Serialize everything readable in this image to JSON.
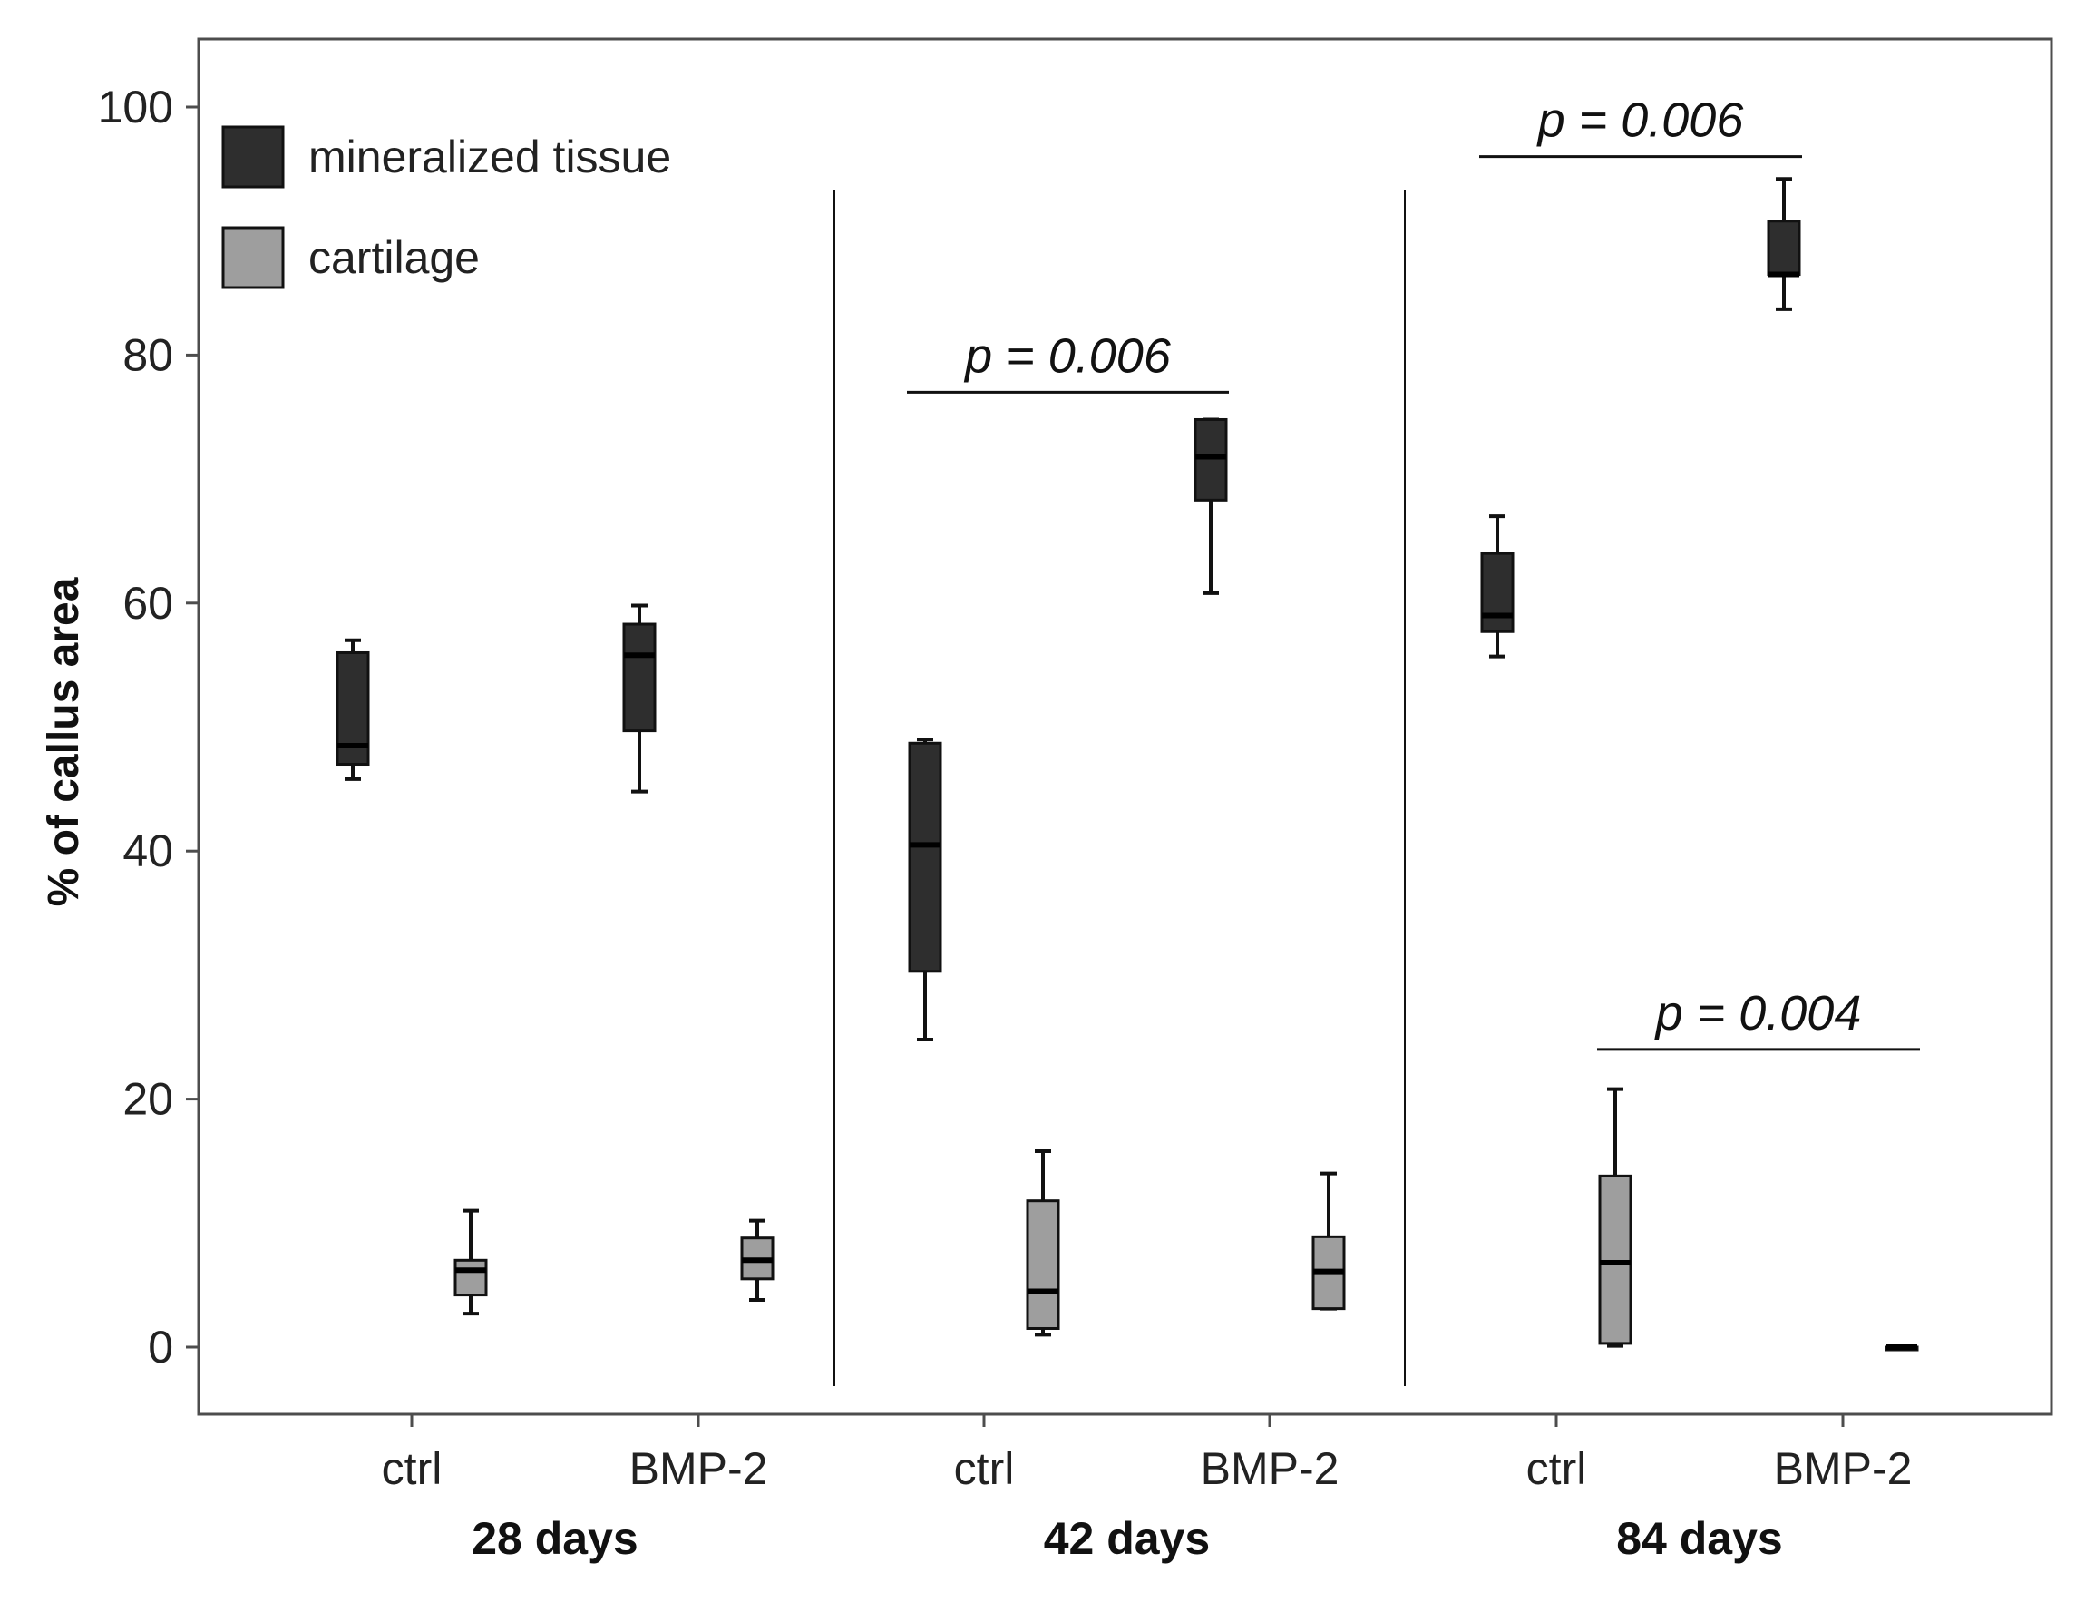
{
  "chart_data": {
    "type": "boxplot",
    "ylabel": "% of callus area",
    "xlabel": "",
    "ylim": [
      0,
      100
    ],
    "yticks": [
      0,
      20,
      40,
      60,
      80,
      100
    ],
    "groups": [
      {
        "label": "28 days",
        "categories": [
          "ctrl",
          "BMP-2"
        ]
      },
      {
        "label": "42 days",
        "categories": [
          "ctrl",
          "BMP-2"
        ]
      },
      {
        "label": "84 days",
        "categories": [
          "ctrl",
          "BMP-2"
        ]
      }
    ],
    "legend": {
      "position": "top-left",
      "entries": [
        {
          "name": "mineralized tissue",
          "color": "#2e2e2e"
        },
        {
          "name": "cartilage",
          "color": "#9e9e9e"
        }
      ]
    },
    "series": [
      {
        "name": "mineralized tissue",
        "color": "#2e2e2e",
        "boxes": [
          {
            "group": "28 days",
            "category": "ctrl",
            "min": 45.8,
            "q1": 47.0,
            "median": 48.5,
            "q3": 56.0,
            "max": 57.0
          },
          {
            "group": "28 days",
            "category": "BMP-2",
            "min": 44.8,
            "q1": 49.7,
            "median": 55.8,
            "q3": 58.3,
            "max": 59.8
          },
          {
            "group": "42 days",
            "category": "ctrl",
            "min": 24.8,
            "q1": 30.3,
            "median": 40.5,
            "q3": 48.7,
            "max": 49.0
          },
          {
            "group": "42 days",
            "category": "BMP-2",
            "min": 60.8,
            "q1": 68.3,
            "median": 71.8,
            "q3": 74.8,
            "max": 74.8
          },
          {
            "group": "84 days",
            "category": "ctrl",
            "min": 55.7,
            "q1": 57.7,
            "median": 59.0,
            "q3": 64.0,
            "max": 67.0
          },
          {
            "group": "84 days",
            "category": "BMP-2",
            "min": 83.7,
            "q1": 86.5,
            "median": 86.5,
            "q3": 90.8,
            "max": 94.2
          }
        ]
      },
      {
        "name": "cartilage",
        "color": "#9e9e9e",
        "boxes": [
          {
            "group": "28 days",
            "category": "ctrl",
            "min": 2.7,
            "q1": 4.2,
            "median": 6.2,
            "q3": 7.0,
            "max": 11.0
          },
          {
            "group": "28 days",
            "category": "BMP-2",
            "min": 3.8,
            "q1": 5.5,
            "median": 7.0,
            "q3": 8.8,
            "max": 10.2
          },
          {
            "group": "42 days",
            "category": "ctrl",
            "min": 1.0,
            "q1": 1.5,
            "median": 4.5,
            "q3": 11.8,
            "max": 15.8
          },
          {
            "group": "42 days",
            "category": "BMP-2",
            "min": 3.1,
            "q1": 3.1,
            "median": 6.1,
            "q3": 8.9,
            "max": 14.0
          },
          {
            "group": "84 days",
            "category": "ctrl",
            "min": 0.1,
            "q1": 0.3,
            "median": 6.8,
            "q3": 13.8,
            "max": 20.8
          },
          {
            "group": "84 days",
            "category": "BMP-2",
            "min": 0.0,
            "q1": 0.0,
            "median": 0.0,
            "q3": 0.0,
            "max": 0.0
          }
        ]
      }
    ],
    "annotations": [
      {
        "text": "p = 0.006",
        "group": "42 days",
        "series": "mineralized tissue",
        "bracket_y": 77
      },
      {
        "text": "p = 0.006",
        "group": "84 days",
        "series": "mineralized tissue",
        "bracket_y": 96
      },
      {
        "text": "p = 0.004",
        "group": "84 days",
        "series": "cartilage",
        "bracket_y": 24
      }
    ]
  }
}
